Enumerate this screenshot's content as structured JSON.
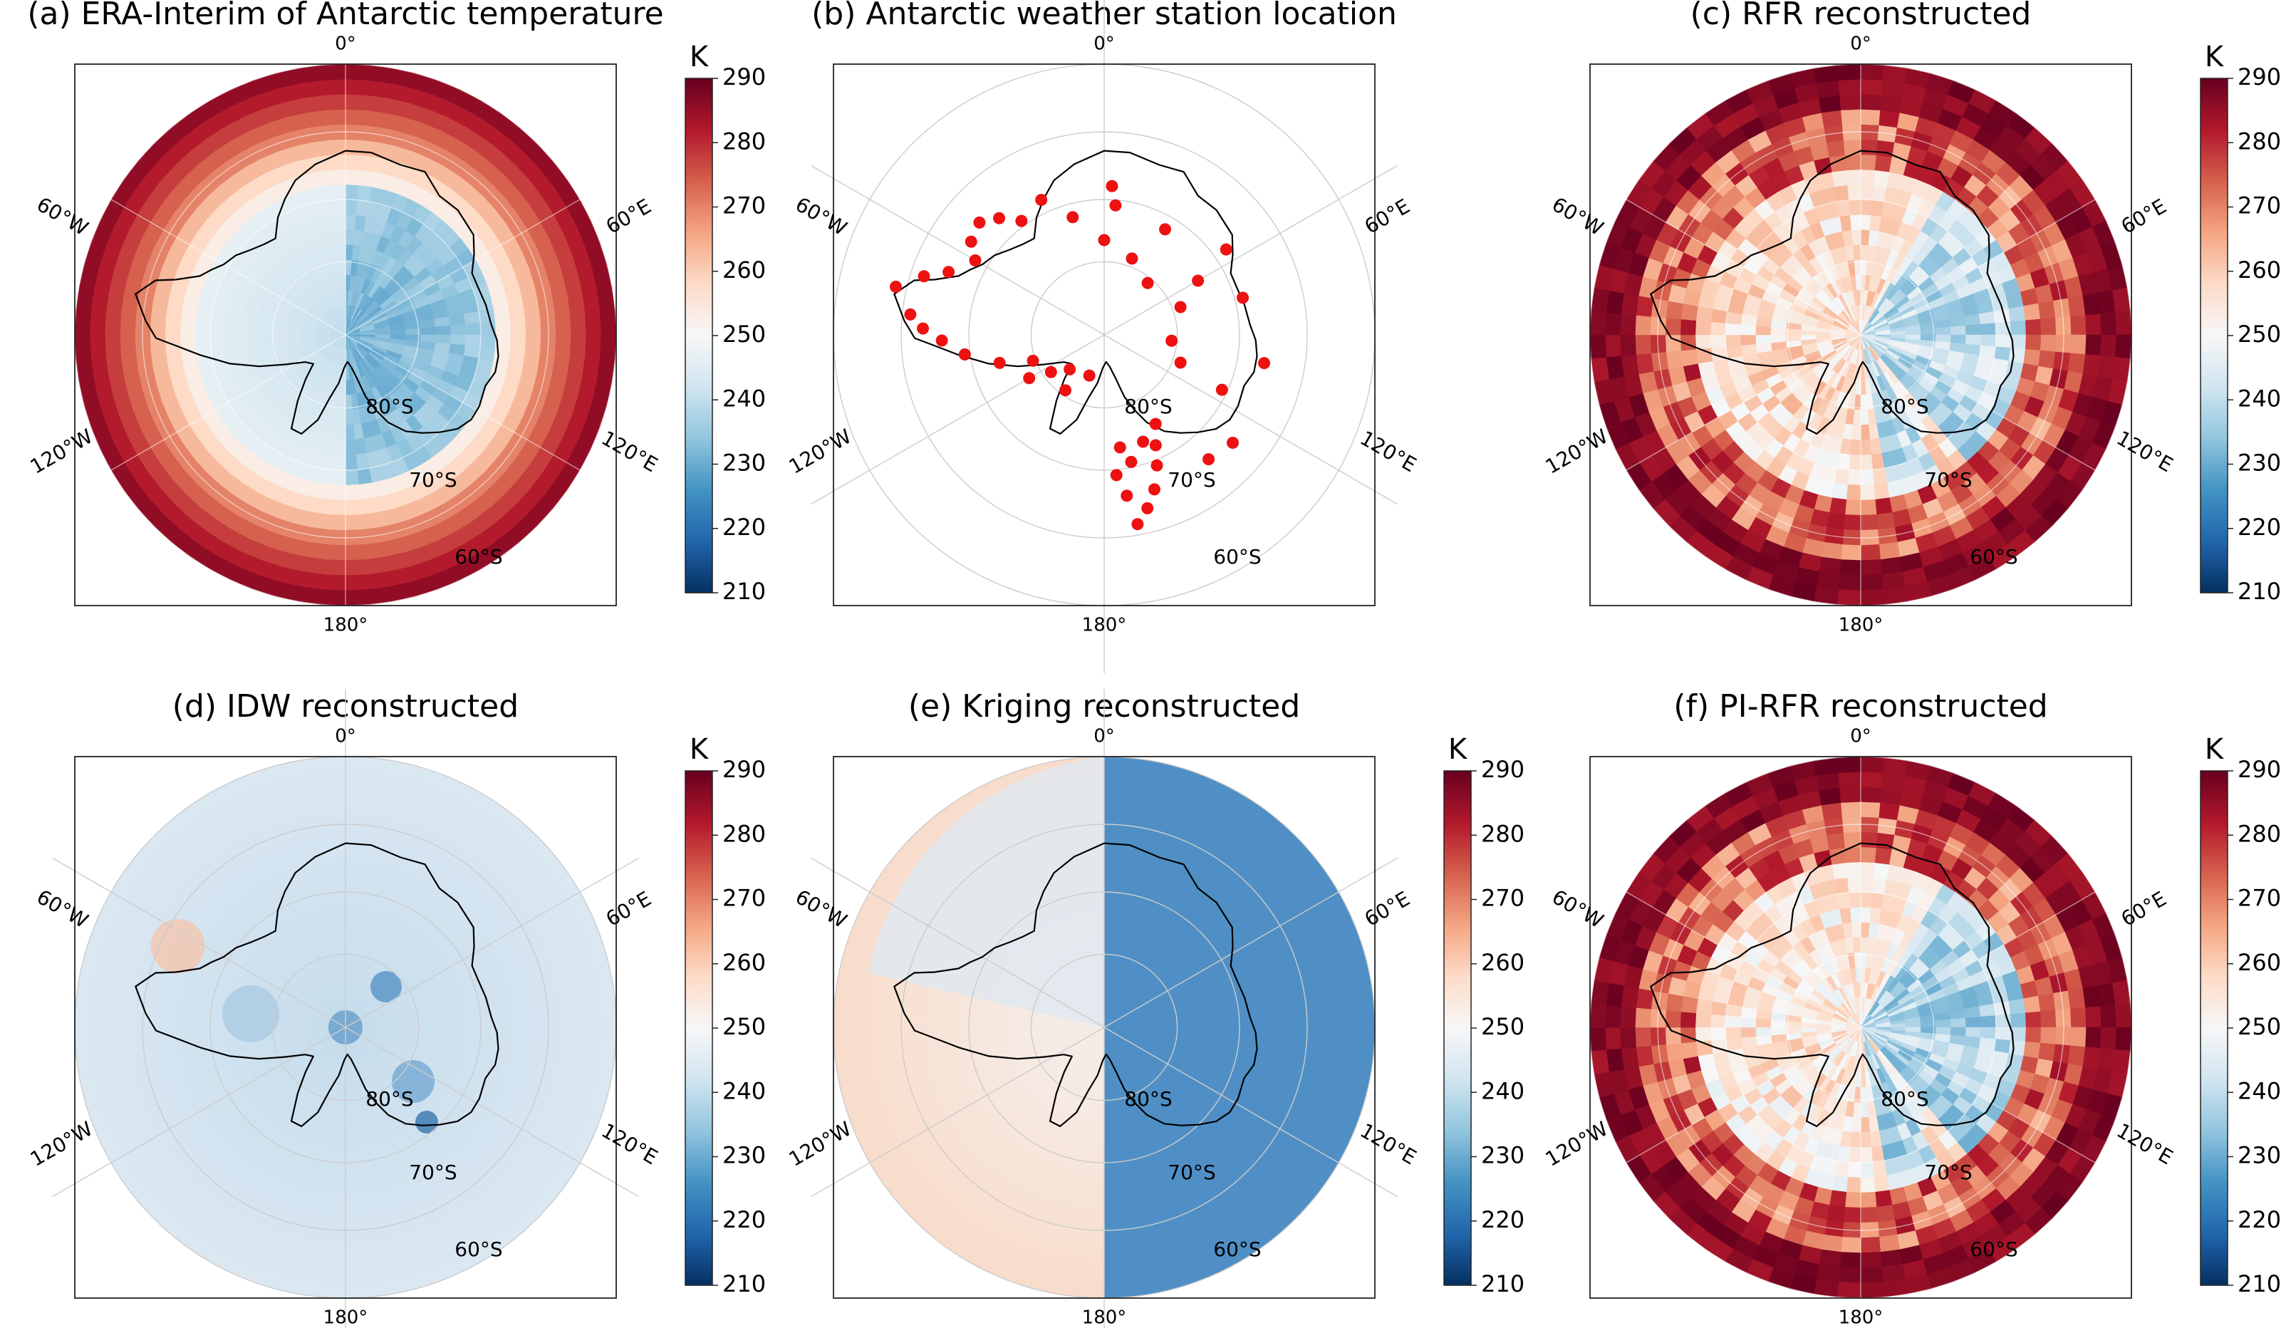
{
  "colorbar": {
    "unit": "K",
    "ticks": [
      "290",
      "280",
      "270",
      "260",
      "250",
      "240",
      "230",
      "220",
      "210"
    ],
    "colors": [
      "#053061",
      "#2166ac",
      "#4393c3",
      "#92c5de",
      "#d1e5f0",
      "#f7f7f7",
      "#fddbc7",
      "#f4a582",
      "#d6604d",
      "#b2182b",
      "#67001f"
    ]
  },
  "gridlabels": {
    "top": "0°",
    "bottom": "180°",
    "upper_left": "60°W",
    "upper_right": "60°E",
    "lower_left": "120°W",
    "lower_right": "120°E",
    "lat80": "80°S",
    "lat70": "70°S",
    "lat60": "60°S"
  },
  "panels": [
    {
      "title": "(a) ERA-Interim of Antarctic temperature",
      "has_colorbar": true
    },
    {
      "title": "(b) Antarctic weather station location",
      "has_colorbar": false
    },
    {
      "title": "(c) RFR reconstructed",
      "has_colorbar": true
    },
    {
      "title": "(d) IDW reconstructed",
      "has_colorbar": true
    },
    {
      "title": "(e) Kriging reconstructed",
      "has_colorbar": true
    },
    {
      "title": "(f) PI-RFR reconstructed",
      "has_colorbar": true
    }
  ],
  "stations": {
    "count": 48,
    "marker_color": "#ee1111"
  }
}
